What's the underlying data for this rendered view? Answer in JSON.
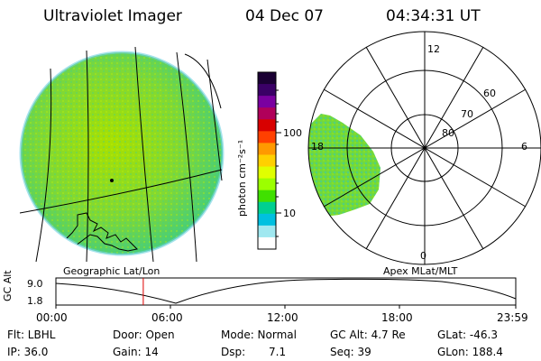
{
  "header": {
    "instrument": "Ultraviolet Imager",
    "date": "04 Dec 07",
    "time": "04:34:31 UT"
  },
  "colorbar": {
    "unit_label": "photon cm⁻²s⁻¹",
    "ticks": [
      "100",
      "10"
    ],
    "colors": [
      "#1a0033",
      "#3a0066",
      "#7a00a0",
      "#b0005a",
      "#d80000",
      "#ff4000",
      "#ff9900",
      "#ffd000",
      "#e0ff00",
      "#9cff00",
      "#40e000",
      "#00d090",
      "#00c0e0",
      "#a0e8f0",
      "#ffffff"
    ]
  },
  "polar": {
    "mlt_labels": [
      "12",
      "18",
      "6",
      "0"
    ],
    "mlat_labels": [
      "60",
      "70",
      "80"
    ]
  },
  "map_labels": {
    "left": "Geographic Lat/Lon",
    "right": "Apex MLat/MLT"
  },
  "altitude_plot": {
    "ylabel": "GC Alt",
    "y_ticks": [
      "9.0",
      "1.8"
    ],
    "x_ticks": [
      "00:00",
      "06:00",
      "12:00",
      "18:00",
      "23:59"
    ],
    "marker_time_fraction": 0.19
  },
  "info": {
    "flt": "Flt: LBHL",
    "ip": "IP: 36.0",
    "door": "Door: Open",
    "gain": "Gain: 14",
    "mode": "Mode: Normal",
    "dsp_label": "Dsp:",
    "dsp_value": "7.1",
    "gcalt": "GC Alt: 4.7 Re",
    "seq": "Seq: 39",
    "glat": "GLat: -46.3",
    "glon": "GLon: 188.4"
  }
}
